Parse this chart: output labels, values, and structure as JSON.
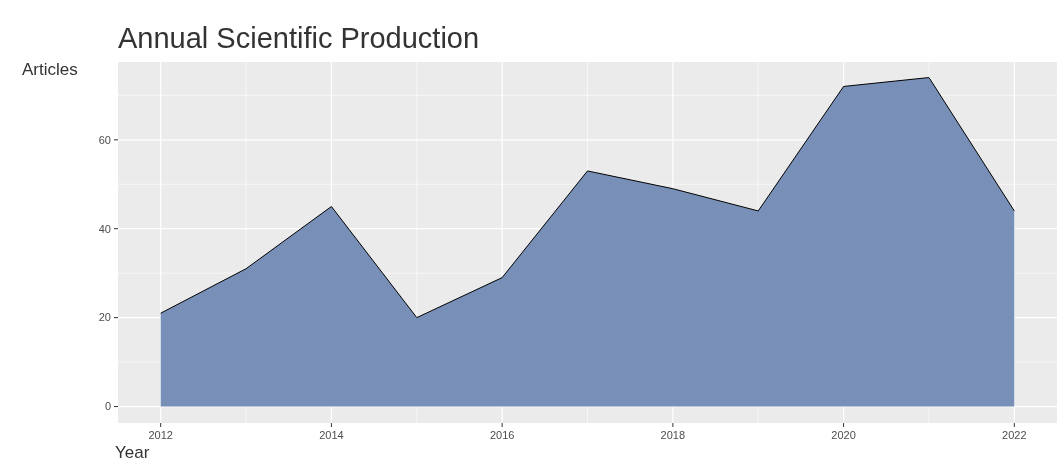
{
  "chart_data": {
    "type": "area",
    "title": "Annual Scientific Production",
    "xlabel": "Year",
    "ylabel": "Articles",
    "x": [
      2012,
      2013,
      2014,
      2015,
      2016,
      2017,
      2018,
      2019,
      2020,
      2021,
      2022
    ],
    "series": [
      {
        "color": "#7890b8",
        "values": [
          21,
          31,
          45,
          20,
          29,
          53,
          49,
          44,
          72,
          74,
          44
        ]
      }
    ],
    "xlim": [
      2011.5,
      2022.5
    ],
    "xticks": [
      2012,
      2014,
      2016,
      2018,
      2020,
      2022
    ],
    "ylim": [
      -3.7,
      77.5
    ],
    "yticks": [
      0,
      20,
      40,
      60
    ],
    "grid": true
  }
}
